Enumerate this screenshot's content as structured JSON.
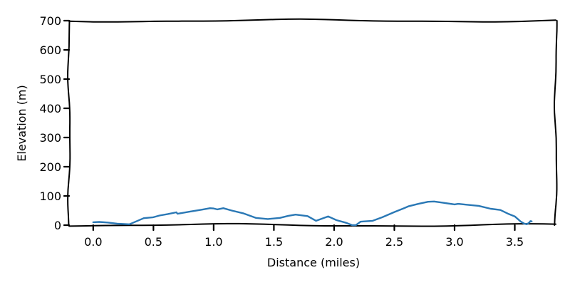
{
  "chart_data": {
    "type": "line",
    "xlabel": "Distance (miles)",
    "ylabel": "Elevation (m)",
    "xlim": [
      -0.2,
      3.84
    ],
    "ylim": [
      0,
      700
    ],
    "xticks": [
      "0.0",
      "0.5",
      "1.0",
      "1.5",
      "2.0",
      "2.5",
      "3.0",
      "3.5"
    ],
    "yticks": [
      "0",
      "100",
      "200",
      "300",
      "400",
      "500",
      "600",
      "700"
    ],
    "grid": false,
    "colors": {
      "line": "#2a78b5",
      "frame": "#000000"
    },
    "series": [
      {
        "x": [
          0.0,
          0.05,
          0.12,
          0.2,
          0.3,
          0.33,
          0.42,
          0.5,
          0.55,
          0.62,
          0.69,
          0.7,
          0.8,
          0.9,
          0.97,
          1.0,
          1.03,
          1.08,
          1.15,
          1.25,
          1.35,
          1.45,
          1.55,
          1.62,
          1.68,
          1.78,
          1.85,
          1.95,
          2.02,
          2.1,
          2.15,
          2.18,
          2.22,
          2.32,
          2.4,
          2.5,
          2.58,
          2.62,
          2.7,
          2.78,
          2.83,
          2.9,
          3.0,
          3.03,
          3.1,
          3.2,
          3.3,
          3.38,
          3.45,
          3.5,
          3.55,
          3.58,
          3.6,
          3.62,
          3.63,
          3.64
        ],
        "y": [
          10,
          11,
          9,
          5,
          3,
          8,
          24,
          27,
          33,
          38,
          44,
          39,
          46,
          53,
          58,
          57,
          54,
          58,
          50,
          40,
          25,
          21,
          25,
          32,
          36,
          31,
          15,
          30,
          17,
          8,
          0,
          0,
          12,
          15,
          27,
          45,
          58,
          65,
          73,
          80,
          81,
          77,
          71,
          73,
          70,
          66,
          56,
          52,
          38,
          30,
          12,
          5,
          3,
          9,
          14,
          13
        ]
      }
    ]
  }
}
